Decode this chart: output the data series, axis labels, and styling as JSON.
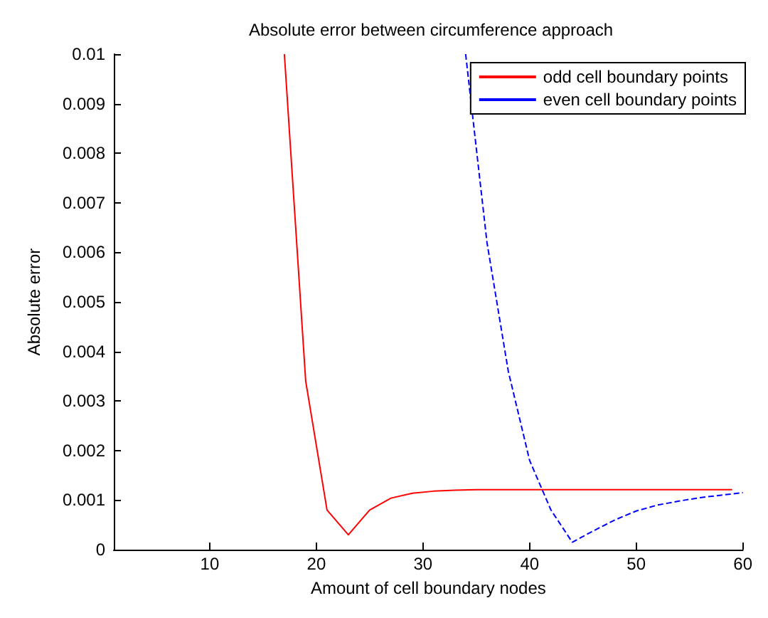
{
  "chart_data": {
    "type": "line",
    "title": "Absolute error between circumference approach",
    "xlabel": "Amount of cell boundary nodes",
    "ylabel": "Absolute error",
    "xlim": [
      1,
      60
    ],
    "xticks": [
      10,
      20,
      30,
      40,
      50,
      60
    ],
    "ylim": [
      0,
      0.01
    ],
    "yticks": [
      0,
      0.001,
      0.002,
      0.003,
      0.004,
      0.005,
      0.006,
      0.007,
      0.008,
      0.009,
      0.01
    ],
    "series": [
      {
        "name": "odd cell boundary points",
        "color": "#ff0000",
        "line_style": "solid",
        "x": [
          17,
          19,
          21,
          23,
          25,
          27,
          29,
          31,
          33,
          35,
          37,
          39,
          41,
          43,
          45,
          47,
          49,
          51,
          53,
          55,
          57,
          59
        ],
        "values": [
          0.01,
          0.0034,
          0.0008,
          0.0003,
          0.0008,
          0.00104,
          0.00114,
          0.00118,
          0.0012,
          0.00121,
          0.00121,
          0.00121,
          0.00121,
          0.00121,
          0.00121,
          0.00121,
          0.00121,
          0.00121,
          0.00121,
          0.00121,
          0.00121,
          0.00121
        ]
      },
      {
        "name": "even cell boundary points",
        "color": "#0000ff",
        "line_style": "dashed",
        "x": [
          34,
          36,
          38,
          40,
          42,
          44,
          46,
          48,
          50,
          52,
          54,
          56,
          58,
          60
        ],
        "values": [
          0.01,
          0.0062,
          0.0036,
          0.0018,
          0.0008,
          0.00015,
          0.00038,
          0.0006,
          0.00078,
          0.0009,
          0.00098,
          0.00105,
          0.0011,
          0.00115
        ]
      }
    ],
    "legend": "top right",
    "grid": false,
    "marker": "none"
  }
}
